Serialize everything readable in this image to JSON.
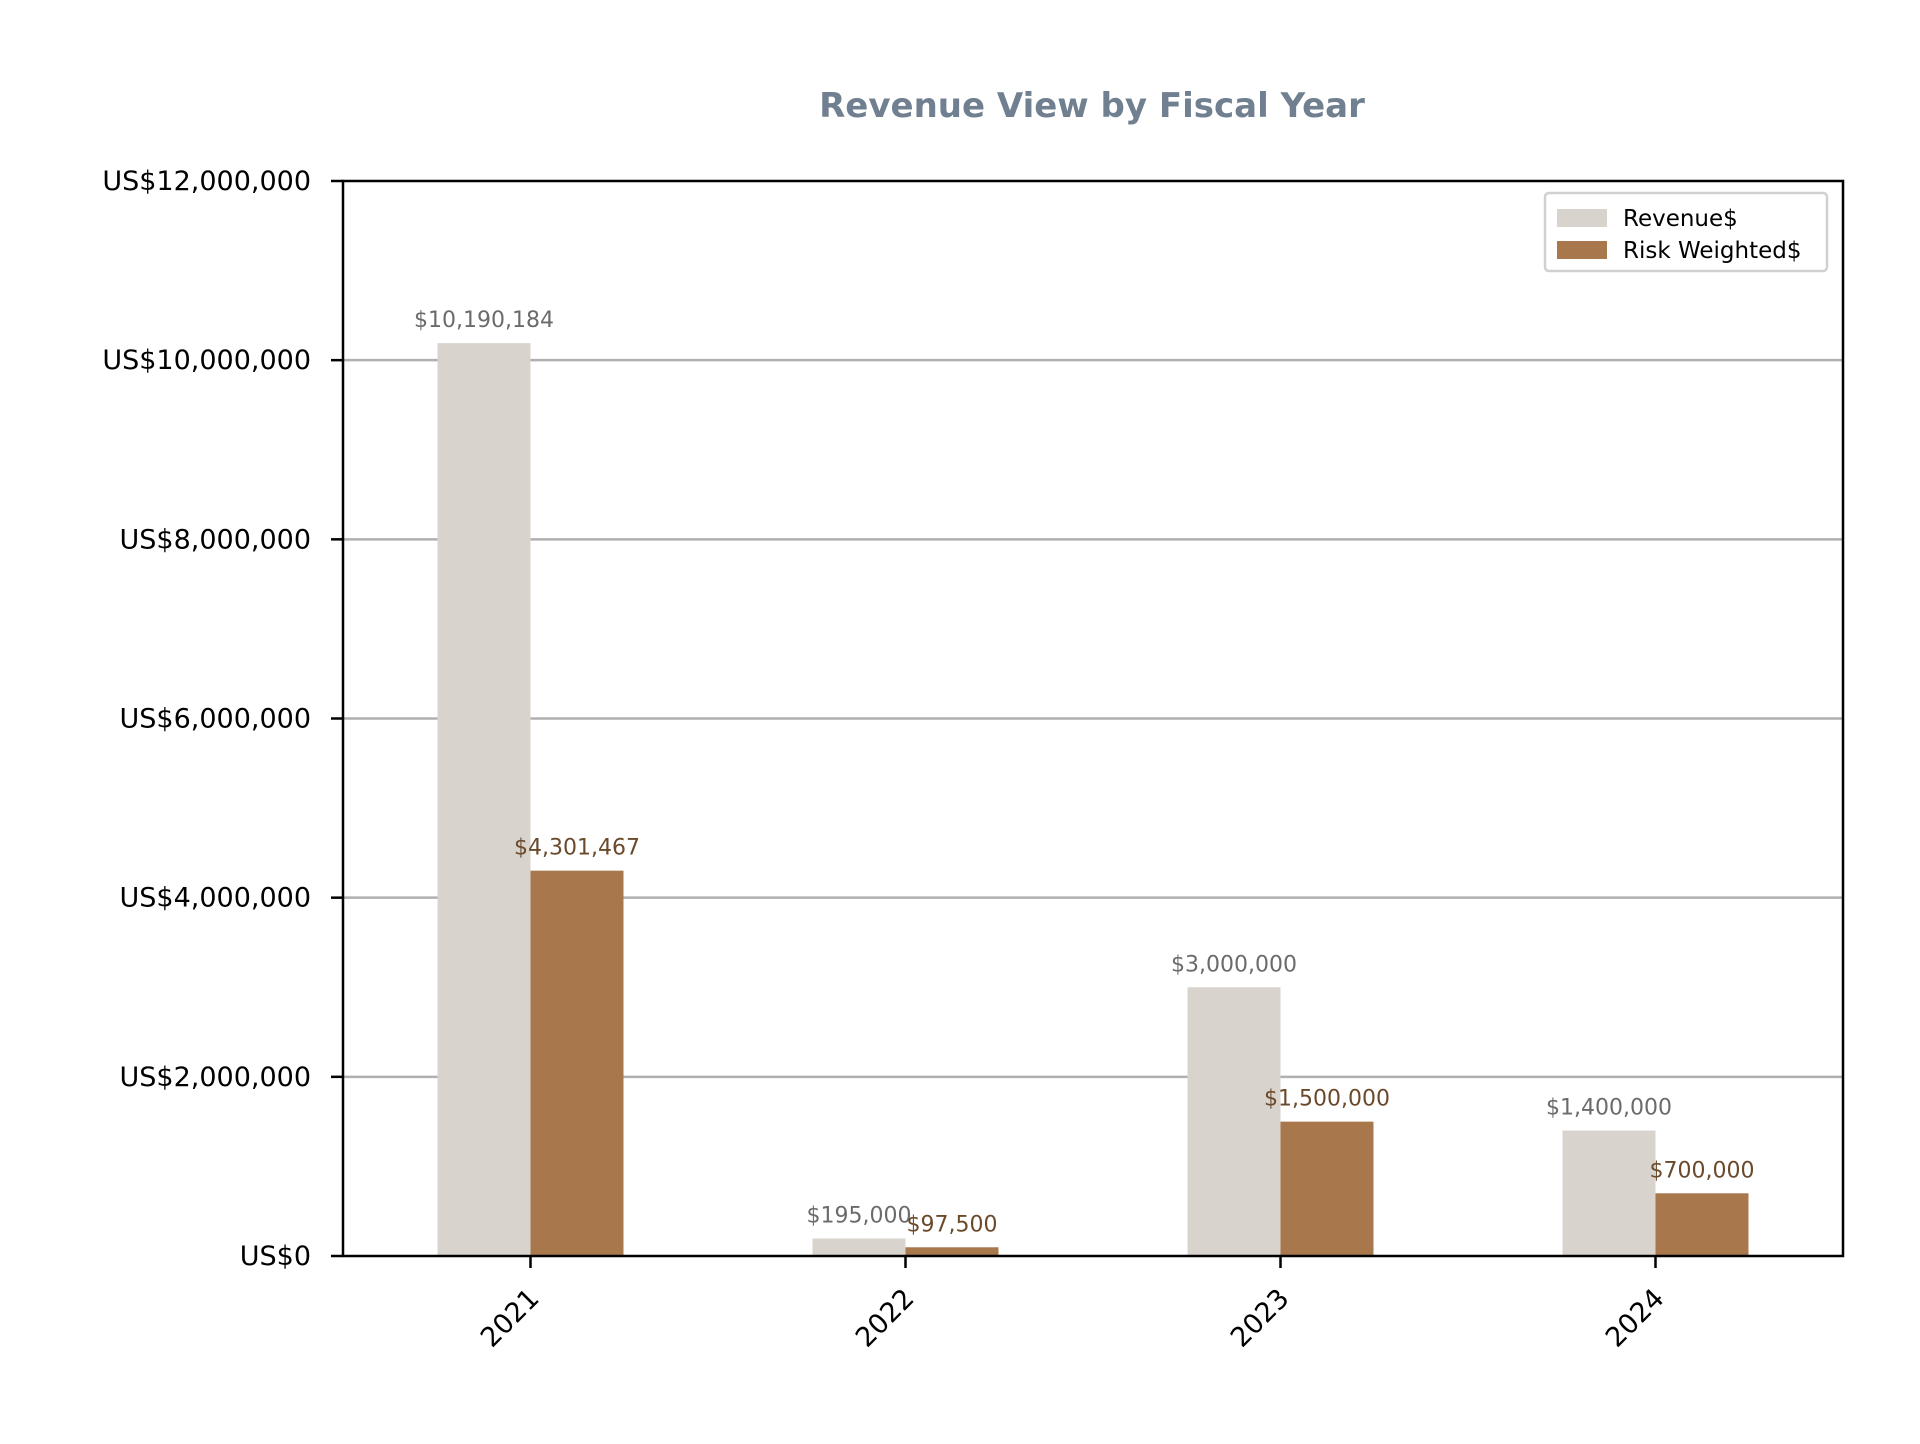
{
  "chart_data": {
    "type": "bar",
    "title": "Revenue View by Fiscal Year",
    "xlabel": "",
    "ylabel": "",
    "categories": [
      "2021",
      "2022",
      "2023",
      "2024"
    ],
    "series": [
      {
        "name": "Revenue$",
        "values": [
          10190184,
          195000,
          3000000,
          1400000
        ],
        "labels": [
          "$10,190,184",
          "$195,000",
          "$3,000,000",
          "$1,400,000"
        ],
        "color": "#d8d3cc",
        "label_color": "#6b6b6b"
      },
      {
        "name": "Risk Weighted$",
        "values": [
          4301467,
          97500,
          1500000,
          700000
        ],
        "labels": [
          "$4,301,467",
          "$97,500",
          "$1,500,000",
          "$700,000"
        ],
        "color": "#a8784c",
        "label_color": "#6b4a2c"
      }
    ],
    "ylim": [
      0,
      12000000
    ],
    "y_ticks": [
      {
        "value": 0,
        "label": "US$0"
      },
      {
        "value": 2000000,
        "label": "US$2,000,000"
      },
      {
        "value": 4000000,
        "label": "US$4,000,000"
      },
      {
        "value": 6000000,
        "label": "US$6,000,000"
      },
      {
        "value": 8000000,
        "label": "US$8,000,000"
      },
      {
        "value": 10000000,
        "label": "US$10,000,000"
      },
      {
        "value": 12000000,
        "label": "US$12,000,000"
      }
    ],
    "grid": "horizontal",
    "legend_position": "top-right",
    "title_color": "#708090",
    "grid_color": "#b0b0b0"
  }
}
